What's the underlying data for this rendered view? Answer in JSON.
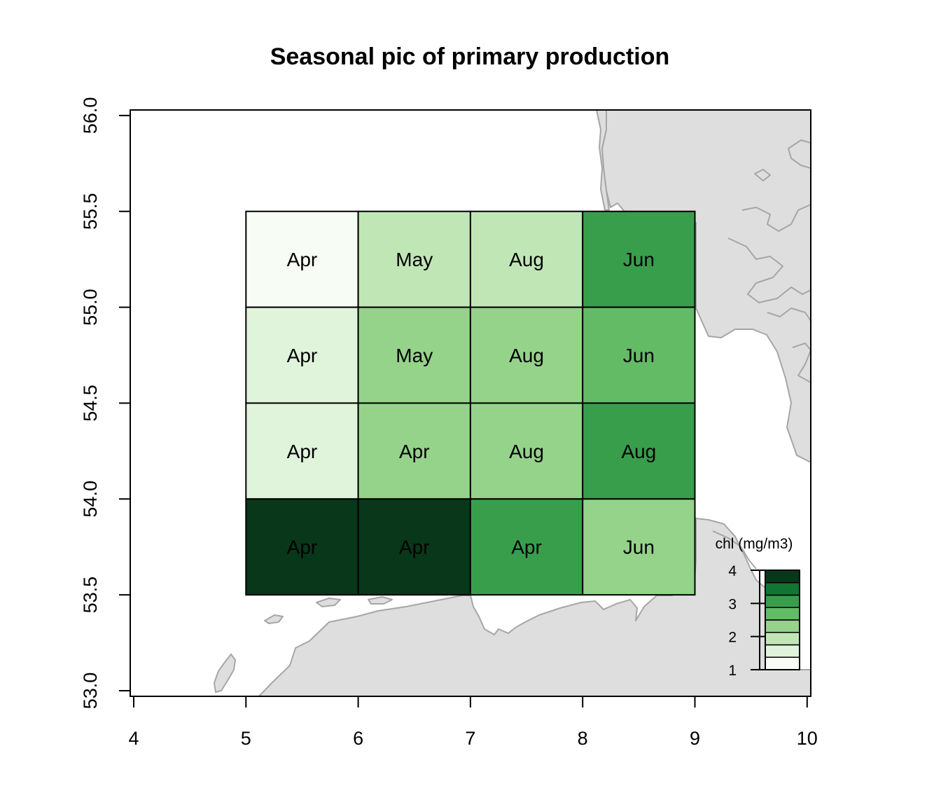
{
  "chart_data": {
    "type": "heatmap",
    "title": "Seasonal pic of primary production",
    "xlabel": "",
    "ylabel": "",
    "xlim": [
      4,
      10
    ],
    "ylim": [
      53.0,
      56.0
    ],
    "x_ticks": [
      "4",
      "5",
      "6",
      "7",
      "8",
      "9",
      "10"
    ],
    "y_ticks": [
      "53.0",
      "53.5",
      "54.0",
      "54.5",
      "55.0",
      "55.5",
      "56.0"
    ],
    "cells": [
      {
        "lon_min": 5,
        "lon_max": 6,
        "lat_min": 55.0,
        "lat_max": 55.5,
        "label": "Apr",
        "chl": 1.0
      },
      {
        "lon_min": 6,
        "lon_max": 7,
        "lat_min": 55.0,
        "lat_max": 55.5,
        "label": "May",
        "chl": 1.9
      },
      {
        "lon_min": 7,
        "lon_max": 8,
        "lat_min": 55.0,
        "lat_max": 55.5,
        "label": "Aug",
        "chl": 1.9
      },
      {
        "lon_min": 8,
        "lon_max": 9,
        "lat_min": 55.0,
        "lat_max": 55.5,
        "label": "Jun",
        "chl": 2.9
      },
      {
        "lon_min": 5,
        "lon_max": 6,
        "lat_min": 54.5,
        "lat_max": 55.0,
        "label": "Apr",
        "chl": 1.4
      },
      {
        "lon_min": 6,
        "lon_max": 7,
        "lat_min": 54.5,
        "lat_max": 55.0,
        "label": "May",
        "chl": 2.2
      },
      {
        "lon_min": 7,
        "lon_max": 8,
        "lat_min": 54.5,
        "lat_max": 55.0,
        "label": "Aug",
        "chl": 2.2
      },
      {
        "lon_min": 8,
        "lon_max": 9,
        "lat_min": 54.5,
        "lat_max": 55.0,
        "label": "Jun",
        "chl": 2.6
      },
      {
        "lon_min": 5,
        "lon_max": 6,
        "lat_min": 54.0,
        "lat_max": 54.5,
        "label": "Apr",
        "chl": 1.4
      },
      {
        "lon_min": 6,
        "lon_max": 7,
        "lat_min": 54.0,
        "lat_max": 54.5,
        "label": "Apr",
        "chl": 2.2
      },
      {
        "lon_min": 7,
        "lon_max": 8,
        "lat_min": 54.0,
        "lat_max": 54.5,
        "label": "Aug",
        "chl": 2.2
      },
      {
        "lon_min": 8,
        "lon_max": 9,
        "lat_min": 54.0,
        "lat_max": 54.5,
        "label": "Aug",
        "chl": 2.9
      },
      {
        "lon_min": 5,
        "lon_max": 6,
        "lat_min": 53.5,
        "lat_max": 54.0,
        "label": "Apr",
        "chl": 4.0
      },
      {
        "lon_min": 6,
        "lon_max": 7,
        "lat_min": 53.5,
        "lat_max": 54.0,
        "label": "Apr",
        "chl": 4.0
      },
      {
        "lon_min": 7,
        "lon_max": 8,
        "lat_min": 53.5,
        "lat_max": 54.0,
        "label": "Apr",
        "chl": 2.9
      },
      {
        "lon_min": 8,
        "lon_max": 9,
        "lat_min": 53.5,
        "lat_max": 54.0,
        "label": "Jun",
        "chl": 2.2
      }
    ],
    "legend": {
      "title": "chl (mg/m3)",
      "placement": "bottom-right",
      "ticks": [
        "1",
        "2",
        "3",
        "4"
      ],
      "range": [
        1,
        4
      ],
      "colors": [
        "#f7fcf5",
        "#e0f3db",
        "#c0e6b6",
        "#94d389",
        "#64bb66",
        "#389e4c",
        "#137533",
        "#08371a"
      ]
    },
    "land_color": "#dedede",
    "coast_color": "#a6a6a6"
  }
}
